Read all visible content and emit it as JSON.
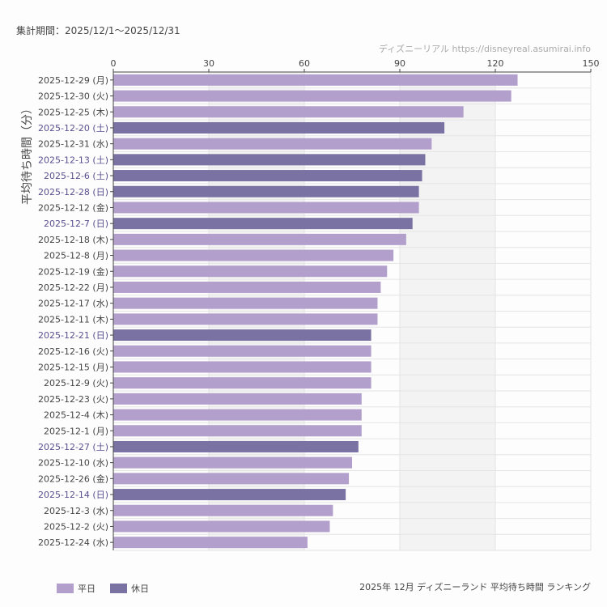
{
  "header": {
    "period": "集計期間：2025/12/1〜2025/12/31",
    "credit": "ディズニーリアル https://disneyreal.asumirai.info"
  },
  "caption": "2025年 12月 ディズニーランド 平均待ち時間 ランキング",
  "legend": [
    {
      "label": "平日",
      "color": "#b39fcc"
    },
    {
      "label": "休日",
      "color": "#7a72a3"
    }
  ],
  "chart_data": {
    "type": "bar",
    "orientation": "horizontal",
    "ylabel": "平均待ち時間（分）",
    "xlim": [
      0,
      150
    ],
    "xticks": [
      0,
      30,
      60,
      90,
      120,
      150
    ],
    "grid": true,
    "legend_position": "bottom-left",
    "colors": {
      "weekday": "#b39fcc",
      "holiday": "#7a72a3",
      "holiday_label": "#5b4f8f"
    },
    "categories": [
      "2025-12-29 (月)",
      "2025-12-30 (火)",
      "2025-12-25 (木)",
      "2025-12-20 (土)",
      "2025-12-31 (水)",
      "2025-12-13 (土)",
      "2025-12-6 (土)",
      "2025-12-28 (日)",
      "2025-12-12 (金)",
      "2025-12-7 (日)",
      "2025-12-18 (木)",
      "2025-12-8 (月)",
      "2025-12-19 (金)",
      "2025-12-22 (月)",
      "2025-12-17 (水)",
      "2025-12-11 (木)",
      "2025-12-21 (日)",
      "2025-12-16 (火)",
      "2025-12-15 (月)",
      "2025-12-9 (火)",
      "2025-12-23 (火)",
      "2025-12-4 (木)",
      "2025-12-1 (月)",
      "2025-12-27 (土)",
      "2025-12-10 (水)",
      "2025-12-26 (金)",
      "2025-12-14 (日)",
      "2025-12-3 (水)",
      "2025-12-2 (火)",
      "2025-12-24 (水)"
    ],
    "values": [
      127,
      125,
      110,
      104,
      100,
      98,
      97,
      96,
      96,
      94,
      92,
      88,
      86,
      84,
      83,
      83,
      81,
      81,
      81,
      81,
      78,
      78,
      78,
      77,
      75,
      74,
      73,
      69,
      68,
      61
    ],
    "day_type": [
      "平日",
      "平日",
      "平日",
      "休日",
      "平日",
      "休日",
      "休日",
      "休日",
      "平日",
      "休日",
      "平日",
      "平日",
      "平日",
      "平日",
      "平日",
      "平日",
      "休日",
      "平日",
      "平日",
      "平日",
      "平日",
      "平日",
      "平日",
      "休日",
      "平日",
      "平日",
      "休日",
      "平日",
      "平日",
      "平日"
    ]
  }
}
